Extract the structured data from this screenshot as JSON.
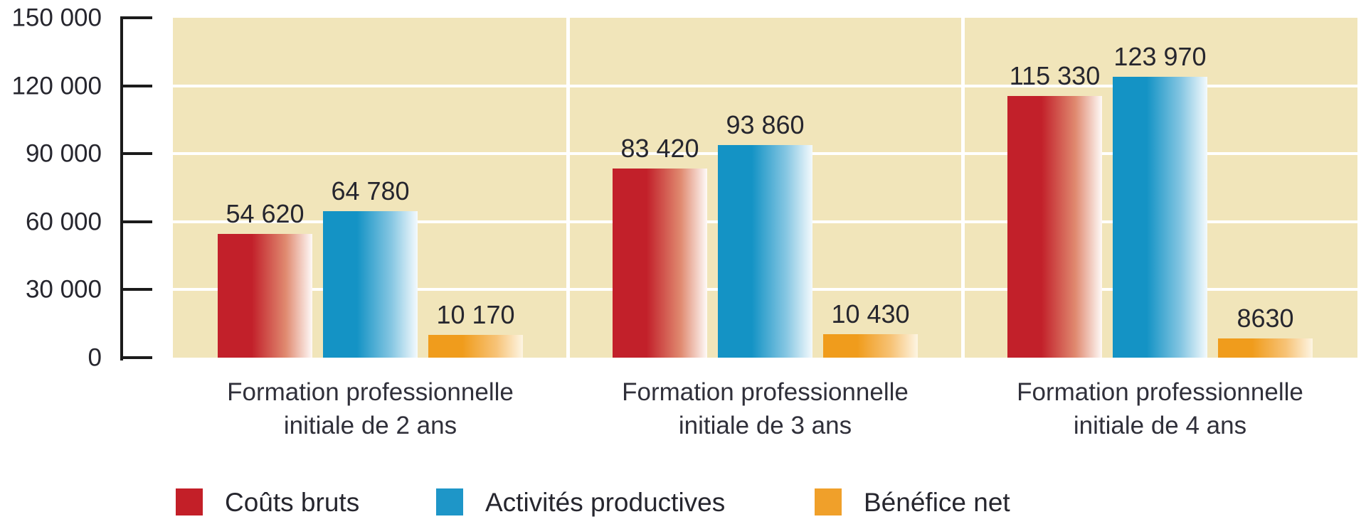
{
  "chart_data": {
    "type": "bar",
    "title": "",
    "xlabel": "",
    "ylabel": "",
    "ylim": [
      0,
      150000
    ],
    "grid": "horizontal white lines every 30000, vertical white separators between groups",
    "legend_position": "bottom",
    "plot_bg_color": "#f1e5ba",
    "grid_color": "#ffffff",
    "axis_color": "#1b1b1b",
    "text_color": "#26262e",
    "y_ticks": [
      {
        "label": "150 000",
        "value": 150000
      },
      {
        "label": "120 000",
        "value": 120000
      },
      {
        "label": "90 000",
        "value": 90000
      },
      {
        "label": "60 000",
        "value": 60000
      },
      {
        "label": "30 000",
        "value": 30000
      },
      {
        "label": "0",
        "value": 0
      }
    ],
    "categories": [
      "Formation professionnelle\ninitiale de 2 ans",
      "Formation professionnelle\ninitiale de 3 ans",
      "Formation professionnelle\ninitiale de 4 ans"
    ],
    "series": [
      {
        "name": "Coûts bruts",
        "color": "#c31f28",
        "bar_gradient": [
          "#c2202a",
          "#e08a70",
          "#fefaf8"
        ],
        "values": [
          54620,
          83420,
          115330
        ],
        "value_labels": [
          "54 620",
          "83 420",
          "115 330"
        ]
      },
      {
        "name": "Activités productives",
        "color": "#1e96c8",
        "bar_gradient": [
          "#1493c5",
          "#85c6e2",
          "#f4fafd"
        ],
        "values": [
          64780,
          93860,
          123970
        ],
        "value_labels": [
          "64 780",
          "93 860",
          "123 970"
        ]
      },
      {
        "name": "Bénéfice net",
        "color": "#f0a02a",
        "bar_gradient": [
          "#f09c1c",
          "#f7c377",
          "#fdf5e3"
        ],
        "values": [
          10170,
          10430,
          8630
        ],
        "value_labels": [
          "10 170",
          "10 430",
          "8630"
        ]
      }
    ]
  }
}
